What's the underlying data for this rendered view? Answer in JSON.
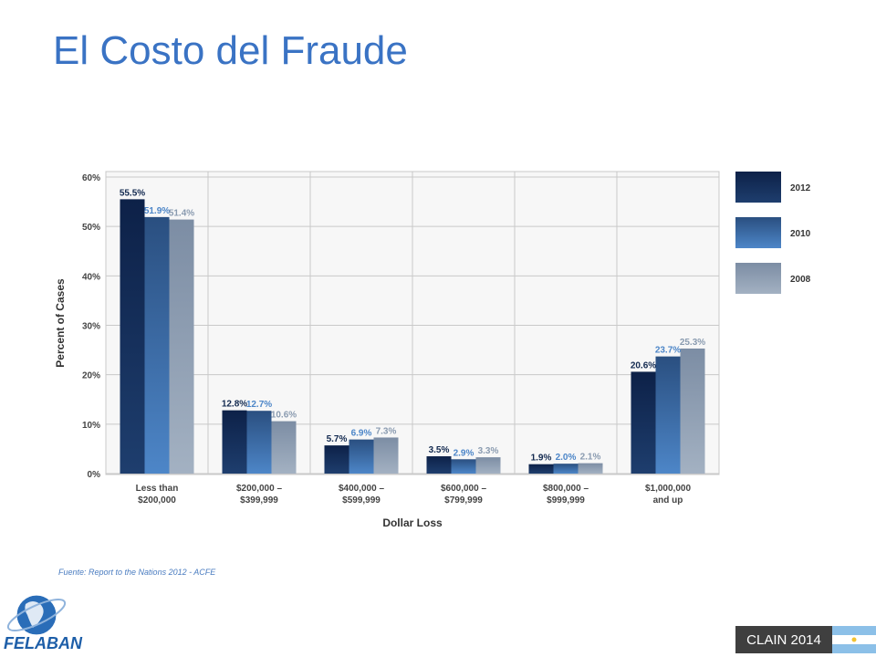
{
  "slide": {
    "title": "El Costo del Fraude",
    "source": "Fuente: Report to the Nations  2012 - ACFE",
    "logo_text": "FELABAN",
    "badge": "CLAIN 2014"
  },
  "colors": {
    "s2012": "#12294f",
    "s2010": "#2f5f98",
    "s2008": "#8a9bb0",
    "title": "#3a73c4"
  },
  "chart_data": {
    "type": "bar",
    "xlabel": "Dollar Loss",
    "ylabel": "Percent of Cases",
    "ylim": [
      0,
      60
    ],
    "yticks": [
      "0%",
      "10%",
      "20%",
      "30%",
      "40%",
      "50%",
      "60%"
    ],
    "grid": true,
    "legend_position": "right",
    "categories": [
      [
        "Less than",
        "$200,000"
      ],
      [
        "$200,000 –",
        "$399,999"
      ],
      [
        "$400,000 –",
        "$599,999"
      ],
      [
        "$600,000 –",
        "$799,999"
      ],
      [
        "$800,000 –",
        "$999,999"
      ],
      [
        "$1,000,000",
        "and up"
      ]
    ],
    "series": [
      {
        "name": "2012",
        "values": [
          55.5,
          12.8,
          5.7,
          3.5,
          1.9,
          20.6
        ],
        "labels": [
          "55.5%",
          "12.8%",
          "5.7%",
          "3.5%",
          "1.9%",
          "20.6%"
        ]
      },
      {
        "name": "2010",
        "values": [
          51.9,
          12.7,
          6.9,
          2.9,
          2.0,
          23.7
        ],
        "labels": [
          "51.9%",
          "12.7%",
          "6.9%",
          "2.9%",
          "2.0%",
          "23.7%"
        ]
      },
      {
        "name": "2008",
        "values": [
          51.4,
          10.6,
          7.3,
          3.3,
          2.1,
          25.3
        ],
        "labels": [
          "51.4%",
          "10.6%",
          "7.3%",
          "3.3%",
          "2.1%",
          "25.3%"
        ]
      }
    ]
  }
}
